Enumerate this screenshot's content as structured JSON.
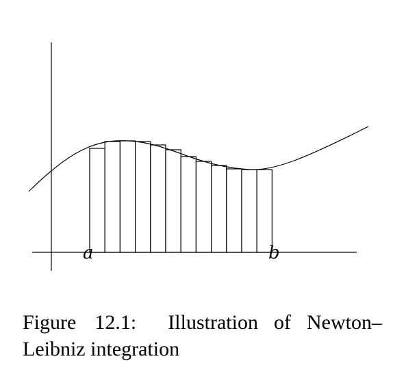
{
  "figure": {
    "label_a": "a",
    "label_b": "b",
    "curve_color": "#000000"
  },
  "caption": {
    "number": "Figure 12.1:",
    "text": "Illustration of Newton–Leibniz integration"
  }
}
